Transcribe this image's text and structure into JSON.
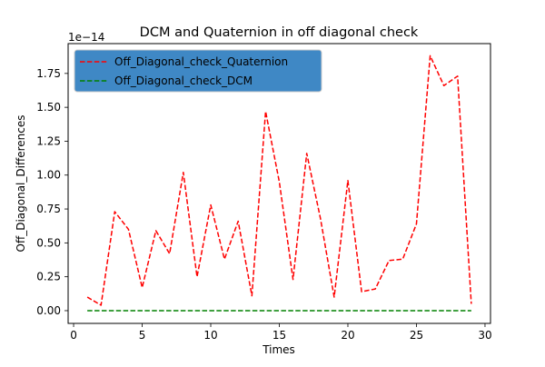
{
  "chart_data": {
    "type": "line",
    "title": "DCM and Quaternion in off diagonal check",
    "xlabel": "Times",
    "ylabel": "Off_Diagonal_Differences",
    "offset_text": "1e−14",
    "y_scale_exponent": -14,
    "xlim": [
      -0.4,
      30.4
    ],
    "ylim": [
      -0.094,
      1.97
    ],
    "x_ticks": [
      0,
      5,
      10,
      15,
      20,
      25,
      30
    ],
    "x_tick_labels": [
      "0",
      "5",
      "10",
      "15",
      "20",
      "25",
      "30"
    ],
    "y_ticks": [
      0.0,
      0.25,
      0.5,
      0.75,
      1.0,
      1.25,
      1.5,
      1.75
    ],
    "y_tick_labels": [
      "0.00",
      "0.25",
      "0.50",
      "0.75",
      "1.00",
      "1.25",
      "1.50",
      "1.75"
    ],
    "grid": false,
    "legend_position": "top-left",
    "legend_bg": "#3f88c5",
    "x": [
      1,
      2,
      3,
      4,
      5,
      6,
      7,
      8,
      9,
      10,
      11,
      12,
      13,
      14,
      15,
      16,
      17,
      18,
      19,
      20,
      21,
      22,
      23,
      24,
      25,
      26,
      27,
      28,
      29
    ],
    "series": [
      {
        "name": "Off_Diagonal_check_Quaternion",
        "color": "#ff0000",
        "values": [
          0.1,
          0.04,
          0.73,
          0.6,
          0.17,
          0.59,
          0.42,
          1.02,
          0.25,
          0.78,
          0.38,
          0.66,
          0.11,
          1.47,
          0.95,
          0.23,
          1.16,
          0.68,
          0.1,
          0.96,
          0.14,
          0.16,
          0.37,
          0.38,
          0.64,
          1.88,
          1.66,
          1.73,
          0.05
        ]
      },
      {
        "name": "Off_Diagonal_check_DCM",
        "color": "#008000",
        "values": [
          0,
          0,
          0,
          0,
          0,
          0,
          0,
          0,
          0,
          0,
          0,
          0,
          0,
          0,
          0,
          0,
          0,
          0,
          0,
          0,
          0,
          0,
          0,
          0,
          0,
          0,
          0,
          0,
          0
        ]
      }
    ]
  }
}
